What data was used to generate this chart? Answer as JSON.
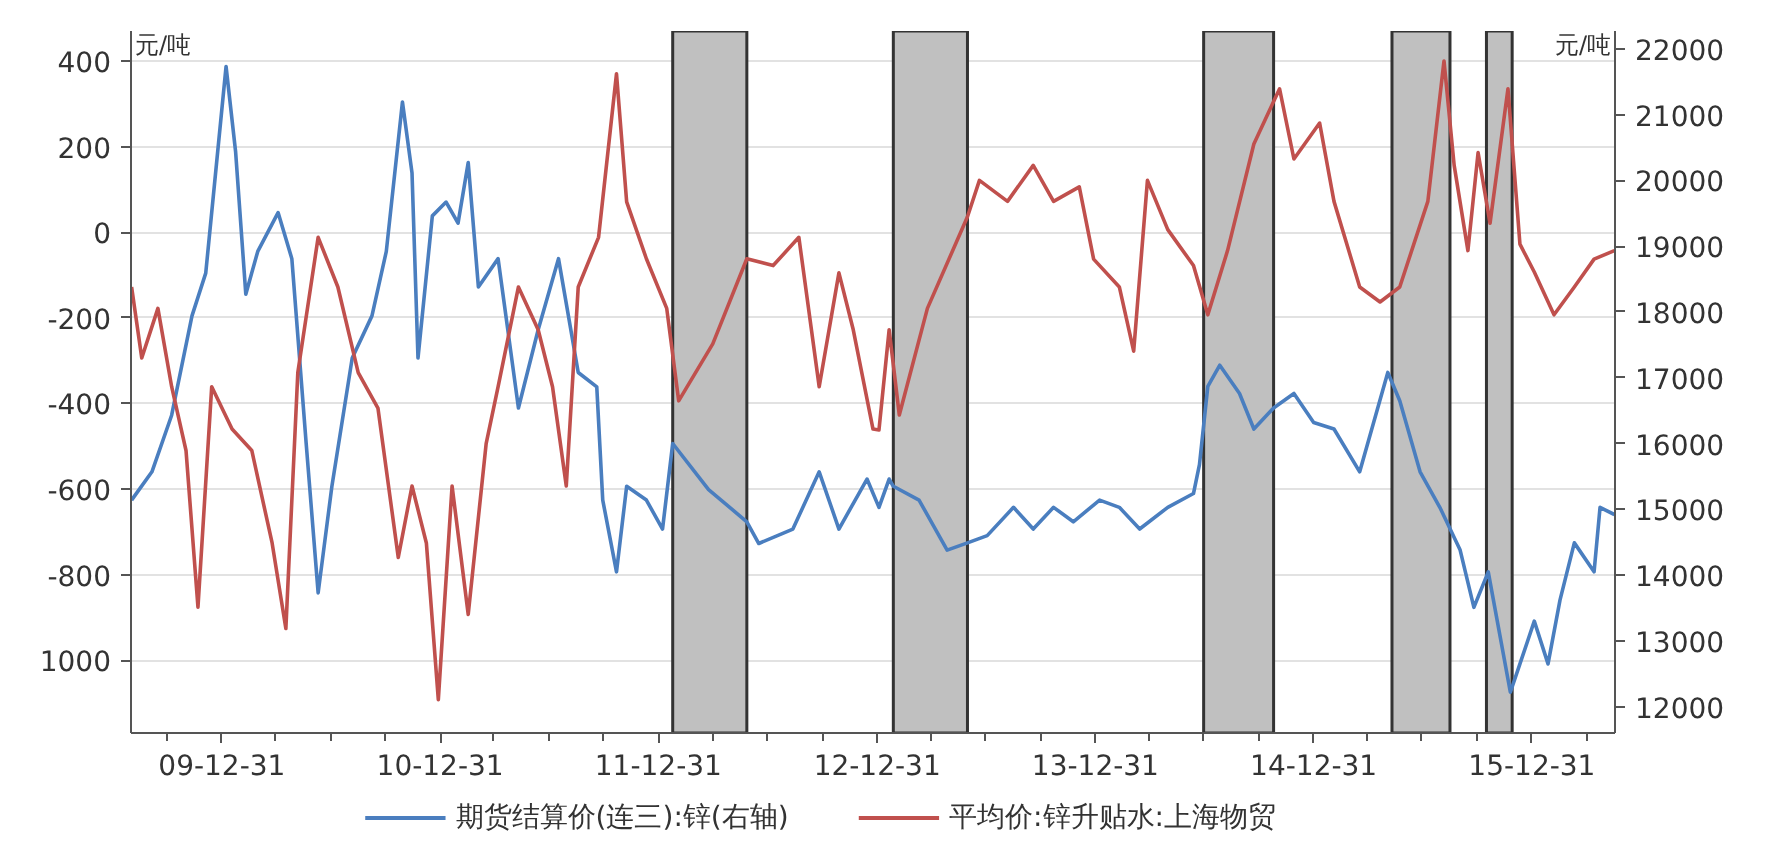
{
  "chart_data": {
    "type": "line",
    "ylabel": "元/吨",
    "y2label": "元/吨",
    "xlim": [
      "2009-08-01",
      "2016-05-18"
    ],
    "xticks": [
      {
        "value": "2009-09-30",
        "label": null
      },
      {
        "value": "2009-12-31",
        "label": "09-12-31"
      },
      {
        "value": "2010-03-31",
        "label": null
      },
      {
        "value": "2010-06-30",
        "label": null
      },
      {
        "value": "2010-09-30",
        "label": null
      },
      {
        "value": "2010-12-31",
        "label": "10-12-31"
      },
      {
        "value": "2011-03-31",
        "label": null
      },
      {
        "value": "2011-06-30",
        "label": null
      },
      {
        "value": "2011-09-30",
        "label": null
      },
      {
        "value": "2011-12-31",
        "label": "11-12-31"
      },
      {
        "value": "2012-03-31",
        "label": null
      },
      {
        "value": "2012-06-30",
        "label": null
      },
      {
        "value": "2012-09-30",
        "label": null
      },
      {
        "value": "2012-12-31",
        "label": "12-12-31"
      },
      {
        "value": "2013-03-31",
        "label": null
      },
      {
        "value": "2013-06-30",
        "label": null
      },
      {
        "value": "2013-09-30",
        "label": null
      },
      {
        "value": "2013-12-31",
        "label": "13-12-31"
      },
      {
        "value": "2014-03-31",
        "label": null
      },
      {
        "value": "2014-06-30",
        "label": null
      },
      {
        "value": "2014-09-30",
        "label": null
      },
      {
        "value": "2014-12-31",
        "label": "14-12-31"
      },
      {
        "value": "2015-03-31",
        "label": null
      },
      {
        "value": "2015-06-30",
        "label": null
      },
      {
        "value": "2015-09-30",
        "label": null
      },
      {
        "value": "2015-12-31",
        "label": "15-12-31"
      },
      {
        "value": "2016-03-31",
        "label": null
      }
    ],
    "ylim": [
      -1170,
      470
    ],
    "yticks": [
      400,
      200,
      0,
      -200,
      -400,
      -600,
      -800,
      {
        "value": -1000,
        "label": "1000"
      }
    ],
    "y2lim": [
      11600,
      22270
    ],
    "y2ticks": [
      12000,
      13000,
      14000,
      15000,
      16000,
      17000,
      18000,
      19000,
      20000,
      21000,
      22000
    ],
    "grid": "y",
    "legend": "bottom",
    "bands": [
      {
        "axis": "x",
        "from": "2012-01-24",
        "to": "2012-05-27",
        "color": "#c0c0c0"
      },
      {
        "axis": "x",
        "from": "2013-01-27",
        "to": "2013-05-31",
        "color": "#c0c0c0"
      },
      {
        "axis": "x",
        "from": "2014-06-30",
        "to": "2014-10-25",
        "color": "#c0c0c0"
      },
      {
        "axis": "x",
        "from": "2015-05-11",
        "to": "2015-08-16",
        "color": "#c0c0c0"
      },
      {
        "axis": "x",
        "from": "2015-10-16",
        "to": "2015-11-28",
        "color": "#c0c0c0"
      }
    ],
    "series": [
      {
        "name": "期货结算价(连三):锌(右轴)",
        "color": "#4a7ebf",
        "axis": "y2",
        "x": [
          "2009-08-02",
          "2009-09-05",
          "2009-10-08",
          "2009-11-11",
          "2009-12-04",
          "2010-01-07",
          "2010-01-23",
          "2010-02-09",
          "2010-03-01",
          "2010-04-04",
          "2010-04-27",
          "2010-05-21",
          "2010-06-10",
          "2010-07-03",
          "2010-08-06",
          "2010-09-08",
          "2010-10-02",
          "2010-10-29",
          "2010-11-14",
          "2010-11-24",
          "2010-12-18",
          "2011-01-10",
          "2011-01-30",
          "2011-02-16",
          "2011-03-05",
          "2011-04-07",
          "2011-05-11",
          "2011-06-13",
          "2011-07-17",
          "2011-08-19",
          "2011-09-19",
          "2011-09-29",
          "2011-10-22",
          "2011-11-08",
          "2011-12-11",
          "2012-01-07",
          "2012-01-24",
          "2012-03-24",
          "2012-05-27",
          "2012-06-16",
          "2012-08-12",
          "2012-09-25",
          "2012-10-28",
          "2012-12-14",
          "2013-01-03",
          "2013-01-20",
          "2013-01-27",
          "2013-03-11",
          "2013-04-27",
          "2013-05-31",
          "2013-07-03",
          "2013-08-16",
          "2013-09-18",
          "2013-10-22",
          "2013-11-24",
          "2014-01-07",
          "2014-02-09",
          "2014-03-15",
          "2014-05-01",
          "2014-06-13",
          "2014-06-23",
          "2014-07-07",
          "2014-07-27",
          "2014-08-29",
          "2014-09-22",
          "2014-10-25",
          "2014-11-28",
          "2014-12-31",
          "2015-02-03",
          "2015-03-18",
          "2015-05-04",
          "2015-05-24",
          "2015-06-27",
          "2015-07-30",
          "2015-09-02",
          "2015-09-25",
          "2015-10-19",
          "2015-11-25",
          "2015-12-11",
          "2016-01-04",
          "2016-01-27",
          "2016-02-16",
          "2016-03-11",
          "2016-04-13",
          "2016-04-23",
          "2016-05-17"
        ],
        "values": [
          15140,
          15570,
          16430,
          17940,
          18590,
          21730,
          20430,
          18270,
          18920,
          19510,
          18810,
          16000,
          13730,
          15350,
          17300,
          17940,
          18920,
          21190,
          20110,
          17300,
          19460,
          19670,
          19350,
          20270,
          18380,
          18810,
          16540,
          17730,
          18810,
          17080,
          16860,
          15140,
          14050,
          15350,
          15140,
          14700,
          16000,
          15300,
          14810,
          14480,
          14700,
          15570,
          14700,
          15460,
          15030,
          15460,
          15350,
          15140,
          14380,
          14490,
          14600,
          15030,
          14700,
          15030,
          14810,
          15140,
          15030,
          14700,
          15030,
          15240,
          15680,
          16870,
          17190,
          16760,
          16220,
          16540,
          16760,
          16320,
          16220,
          15570,
          17080,
          16650,
          15570,
          15030,
          14380,
          13510,
          14050,
          12220,
          12650,
          13300,
          12650,
          13620,
          14490,
          14050,
          15030,
          14920
        ]
      },
      {
        "name": "平均价:锌升贴水:上海物贸",
        "color": "#c0504d",
        "x": [
          "2009-08-02",
          "2009-08-19",
          "2009-09-15",
          "2009-10-08",
          "2009-11-01",
          "2009-11-21",
          "2009-12-14",
          "2010-01-17",
          "2010-02-19",
          "2010-03-25",
          "2010-04-17",
          "2010-05-07",
          "2010-06-10",
          "2010-07-13",
          "2010-08-16",
          "2010-09-18",
          "2010-10-22",
          "2010-11-14",
          "2010-12-08",
          "2010-12-28",
          "2011-01-20",
          "2011-02-16",
          "2011-03-18",
          "2011-04-07",
          "2011-05-11",
          "2011-06-13",
          "2011-07-07",
          "2011-07-30",
          "2011-08-19",
          "2011-09-22",
          "2011-10-22",
          "2011-11-08",
          "2011-12-11",
          "2012-01-14",
          "2012-02-03",
          "2012-03-31",
          "2012-05-27",
          "2012-07-10",
          "2012-08-22",
          "2012-09-25",
          "2012-10-28",
          "2012-11-21",
          "2012-12-24",
          "2013-01-03",
          "2013-01-20",
          "2013-02-06",
          "2013-03-25",
          "2013-05-31",
          "2013-06-20",
          "2013-08-06",
          "2013-09-18",
          "2013-10-22",
          "2013-12-04",
          "2013-12-28",
          "2014-02-09",
          "2014-03-05",
          "2014-03-28",
          "2014-05-01",
          "2014-06-13",
          "2014-07-07",
          "2014-08-09",
          "2014-09-22",
          "2014-11-04",
          "2014-11-28",
          "2015-01-10",
          "2015-02-03",
          "2015-03-18",
          "2015-04-21",
          "2015-05-24",
          "2015-07-10",
          "2015-08-06",
          "2015-08-23",
          "2015-09-15",
          "2015-10-02",
          "2015-10-22",
          "2015-11-21",
          "2015-12-11",
          "2016-01-04",
          "2016-02-06",
          "2016-03-11",
          "2016-04-13",
          "2016-05-17"
        ],
        "values": [
          -128,
          -294,
          -178,
          -361,
          -510,
          -876,
          -361,
          -460,
          -510,
          -726,
          -926,
          -328,
          -12,
          -128,
          -328,
          -411,
          -760,
          -593,
          -726,
          -1092,
          -593,
          -893,
          -494,
          -361,
          -128,
          -228,
          -361,
          -593,
          -128,
          -12,
          370,
          71,
          -62,
          -178,
          -394,
          -261,
          -62,
          -78,
          -12,
          -361,
          -95,
          -228,
          -460,
          -462,
          -228,
          -427,
          -178,
          36,
          121,
          72,
          156,
          72,
          106,
          -63,
          -128,
          -278,
          121,
          6,
          -78,
          -193,
          -43,
          206,
          335,
          171,
          255,
          72,
          -128,
          -163,
          -128,
          72,
          400,
          156,
          -43,
          186,
          21,
          335,
          -28,
          -93,
          -193,
          -128,
          -63,
          -43
        ]
      }
    ]
  }
}
